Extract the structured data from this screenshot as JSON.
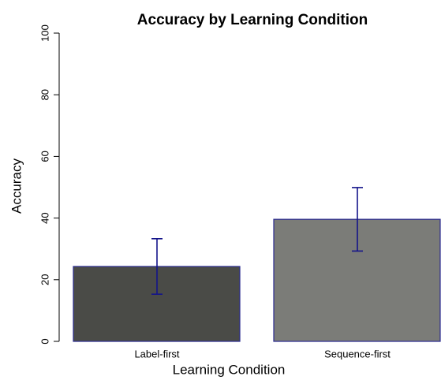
{
  "chart_data": {
    "type": "bar",
    "title": "Accuracy by Learning Condition",
    "xlabel": "Learning Condition",
    "ylabel": "Accuracy",
    "categories": [
      "Label-first",
      "Sequence-first"
    ],
    "values": [
      24.3,
      39.6
    ],
    "errors": [
      9,
      10.3
    ],
    "colors": [
      "#4a4b47",
      "#7b7c78"
    ],
    "edge_color": "#2a2a90",
    "error_color": "#14148a",
    "ylim": [
      0,
      100
    ],
    "yticks": [
      0,
      20,
      40,
      60,
      80,
      100
    ],
    "grid": false
  }
}
